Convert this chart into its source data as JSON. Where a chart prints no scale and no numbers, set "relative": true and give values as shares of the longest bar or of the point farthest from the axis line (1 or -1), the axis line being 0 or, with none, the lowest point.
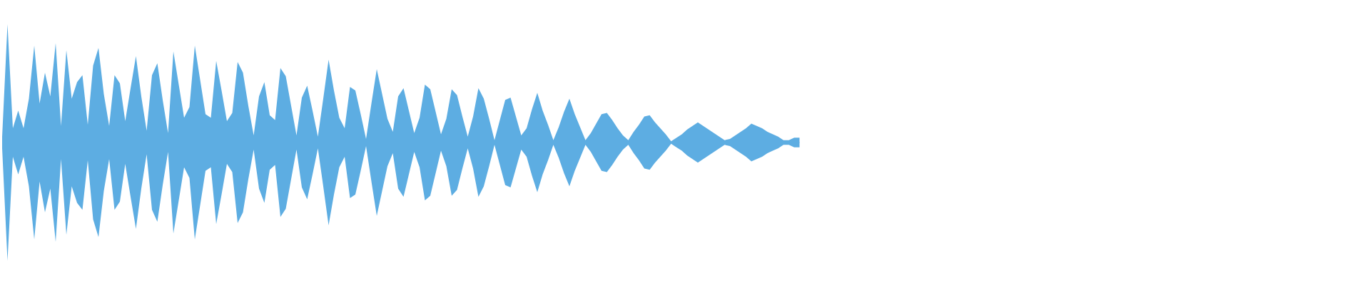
{
  "chart_data": {
    "type": "area",
    "relative": true,
    "categories": [
      null,
      null,
      null,
      null,
      null,
      null,
      null,
      null,
      null,
      null,
      null,
      null,
      null,
      null,
      null,
      null,
      null,
      null,
      null,
      null,
      null,
      null,
      null,
      null,
      null,
      null,
      null,
      null,
      null,
      null,
      null,
      null,
      null,
      null,
      null,
      null,
      null,
      null,
      null,
      null,
      null,
      null,
      null,
      null,
      null,
      null,
      null,
      null,
      null,
      null,
      null,
      null,
      null,
      null,
      null,
      null,
      null,
      null,
      null,
      null,
      null,
      null,
      null,
      null,
      null,
      null,
      null,
      null,
      null,
      null,
      null,
      null,
      null,
      null,
      null,
      null,
      null,
      null,
      null,
      null,
      null,
      null,
      null,
      null,
      null,
      null,
      null,
      null,
      null,
      null,
      null,
      null,
      null,
      null,
      null,
      null,
      null,
      null,
      null,
      null,
      null,
      null,
      null,
      null,
      null,
      null,
      null,
      null,
      null,
      null,
      null,
      null,
      null,
      null,
      null,
      null,
      null,
      null,
      null,
      null,
      null,
      null,
      null,
      null,
      null,
      null,
      null,
      null,
      null,
      null,
      null,
      null,
      null,
      null,
      null,
      null,
      null,
      null,
      null,
      null,
      null,
      null,
      null,
      null,
      null,
      null,
      null,
      null,
      null,
      null
    ],
    "series": [
      {
        "color": "#5dade2",
        "values": [
          0.05,
          1.0,
          0.12,
          0.27,
          0.12,
          0.37,
          0.82,
          0.33,
          0.59,
          0.39,
          0.84,
          0.14,
          0.78,
          0.37,
          0.51,
          0.57,
          0.15,
          0.65,
          0.8,
          0.41,
          0.14,
          0.57,
          0.5,
          0.18,
          0.46,
          0.73,
          0.39,
          0.1,
          0.57,
          0.67,
          0.36,
          0.08,
          0.77,
          0.49,
          0.21,
          0.3,
          0.82,
          0.53,
          0.24,
          0.21,
          0.69,
          0.44,
          0.18,
          0.25,
          0.68,
          0.59,
          0.31,
          0.06,
          0.39,
          0.51,
          0.23,
          0.19,
          0.63,
          0.56,
          0.31,
          0.06,
          0.38,
          0.48,
          0.27,
          0.05,
          0.37,
          0.7,
          0.44,
          0.21,
          0.12,
          0.47,
          0.44,
          0.24,
          0.03,
          0.33,
          0.62,
          0.41,
          0.2,
          0.09,
          0.39,
          0.46,
          0.27,
          0.08,
          0.21,
          0.49,
          0.45,
          0.26,
          0.07,
          0.2,
          0.45,
          0.4,
          0.22,
          0.05,
          0.22,
          0.46,
          0.37,
          0.2,
          0.02,
          0.19,
          0.36,
          0.38,
          0.22,
          0.06,
          0.12,
          0.28,
          0.42,
          0.27,
          0.15,
          0.02,
          0.13,
          0.26,
          0.37,
          0.24,
          0.13,
          0.02,
          0.08,
          0.16,
          0.24,
          0.25,
          0.19,
          0.12,
          0.06,
          0.02,
          0.09,
          0.15,
          0.22,
          0.23,
          0.17,
          0.12,
          0.07,
          0.01,
          0.04,
          0.07,
          0.11,
          0.14,
          0.17,
          0.14,
          0.11,
          0.08,
          0.05,
          0.02,
          0.03,
          0.06,
          0.09,
          0.12,
          0.16,
          0.14,
          0.12,
          0.09,
          0.07,
          0.05,
          0.02,
          0.02,
          0.04,
          0.04
        ]
      },
      {
        "color": "#5dade2",
        "values": [
          -0.05,
          -1.0,
          -0.12,
          -0.27,
          -0.12,
          -0.37,
          -0.82,
          -0.33,
          -0.59,
          -0.39,
          -0.84,
          -0.14,
          -0.78,
          -0.37,
          -0.51,
          -0.57,
          -0.15,
          -0.65,
          -0.8,
          -0.41,
          -0.14,
          -0.57,
          -0.5,
          -0.18,
          -0.46,
          -0.73,
          -0.39,
          -0.1,
          -0.57,
          -0.67,
          -0.36,
          -0.08,
          -0.77,
          -0.49,
          -0.21,
          -0.3,
          -0.82,
          -0.53,
          -0.24,
          -0.21,
          -0.69,
          -0.44,
          -0.18,
          -0.25,
          -0.68,
          -0.59,
          -0.31,
          -0.06,
          -0.39,
          -0.51,
          -0.23,
          -0.19,
          -0.63,
          -0.56,
          -0.31,
          -0.06,
          -0.38,
          -0.48,
          -0.27,
          -0.05,
          -0.37,
          -0.7,
          -0.44,
          -0.21,
          -0.12,
          -0.47,
          -0.44,
          -0.24,
          -0.03,
          -0.33,
          -0.62,
          -0.41,
          -0.2,
          -0.09,
          -0.39,
          -0.46,
          -0.27,
          -0.08,
          -0.21,
          -0.49,
          -0.45,
          -0.26,
          -0.07,
          -0.2,
          -0.45,
          -0.4,
          -0.22,
          -0.05,
          -0.22,
          -0.46,
          -0.37,
          -0.2,
          -0.02,
          -0.19,
          -0.36,
          -0.38,
          -0.22,
          -0.06,
          -0.12,
          -0.28,
          -0.42,
          -0.27,
          -0.15,
          -0.02,
          -0.13,
          -0.26,
          -0.37,
          -0.24,
          -0.13,
          -0.02,
          -0.08,
          -0.16,
          -0.24,
          -0.25,
          -0.19,
          -0.12,
          -0.06,
          -0.02,
          -0.09,
          -0.15,
          -0.22,
          -0.23,
          -0.17,
          -0.12,
          -0.07,
          -0.01,
          -0.04,
          -0.07,
          -0.11,
          -0.14,
          -0.17,
          -0.14,
          -0.11,
          -0.08,
          -0.05,
          -0.02,
          -0.03,
          -0.06,
          -0.09,
          -0.12,
          -0.16,
          -0.14,
          -0.12,
          -0.09,
          -0.07,
          -0.05,
          -0.02,
          -0.02,
          -0.04,
          -0.04
        ]
      }
    ]
  }
}
